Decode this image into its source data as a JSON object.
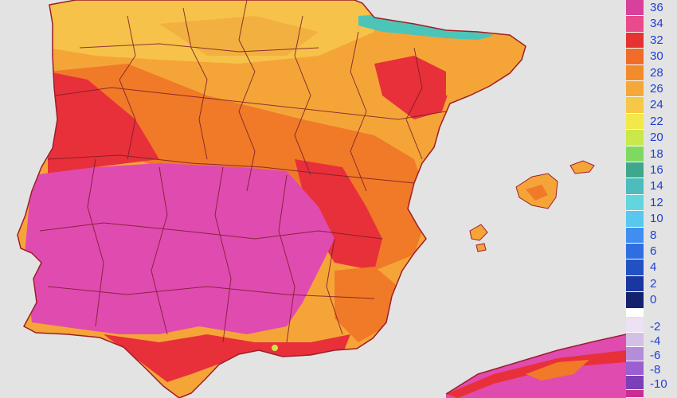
{
  "map": {
    "region": "Iberian Peninsula",
    "colors": {
      "sea": "#e3e3e3",
      "coast_border": "#9e1d2a",
      "province_border": "#7a1d2a",
      "very_hot": "#e04bb0",
      "hot": "#e8303a",
      "warm": "#f07a28",
      "mild": "#f5a538",
      "cool": "#f8d046",
      "cold_peaks": "#4cc5b8"
    },
    "icons": [
      "temperature-scale-icon"
    ]
  },
  "legend": {
    "positive": [
      {
        "label": "36",
        "color": "#d9409c"
      },
      {
        "label": "34",
        "color": "#e84a8c"
      },
      {
        "label": "32",
        "color": "#e63232"
      },
      {
        "label": "30",
        "color": "#ef6c2a"
      },
      {
        "label": "28",
        "color": "#f28b2c"
      },
      {
        "label": "26",
        "color": "#f5a83a"
      },
      {
        "label": "24",
        "color": "#f7c847"
      },
      {
        "label": "22",
        "color": "#f2e84a"
      },
      {
        "label": "20",
        "color": "#c9e94a"
      },
      {
        "label": "18",
        "color": "#7fd960"
      },
      {
        "label": "16",
        "color": "#3fa88a"
      },
      {
        "label": "14",
        "color": "#4cbcbc"
      },
      {
        "label": "12",
        "color": "#62d6de"
      },
      {
        "label": "10",
        "color": "#59c7ee"
      },
      {
        "label": "8",
        "color": "#3f8ef0"
      },
      {
        "label": "6",
        "color": "#2e6ee0"
      },
      {
        "label": "4",
        "color": "#2251c4"
      },
      {
        "label": "2",
        "color": "#1a36a0"
      },
      {
        "label": "0",
        "color": "#14226e"
      }
    ],
    "negative": [
      {
        "label": "-2",
        "color": "#ece2f3"
      },
      {
        "label": "-4",
        "color": "#d4bfe6"
      },
      {
        "label": "-6",
        "color": "#b58cd9"
      },
      {
        "label": "-8",
        "color": "#9a5fd0"
      },
      {
        "label": "-10",
        "color": "#7c3fb8"
      }
    ],
    "last_color": "#cc2e90"
  }
}
